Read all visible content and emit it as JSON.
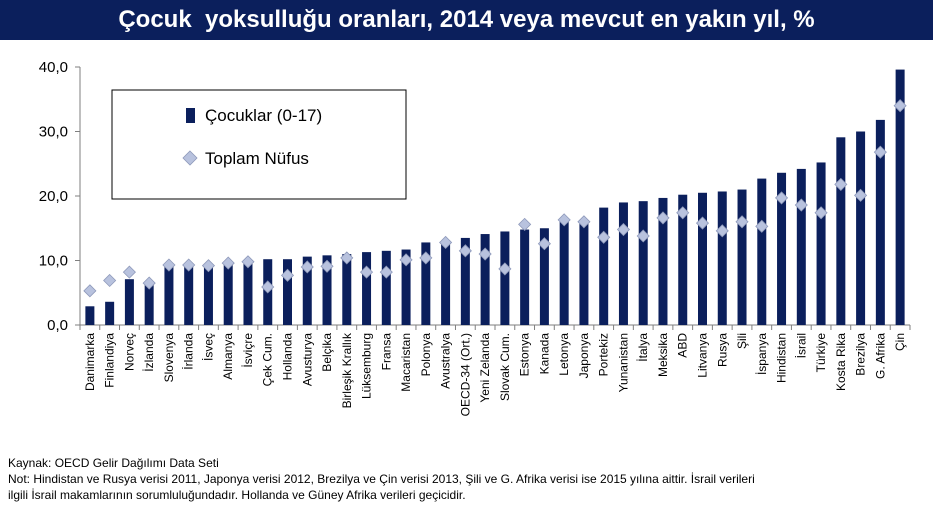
{
  "chart_data": {
    "type": "bar",
    "title": "Çocuk  yoksulluğu oranları, 2014 veya mevcut en yakın yıl, %",
    "ylim": [
      0,
      40
    ],
    "yticks": [
      "0,0",
      "10,0",
      "20,0",
      "30,0",
      "40,0"
    ],
    "legend_position": "top-left",
    "categories": [
      "Danimarka",
      "Finlandiya",
      "Norveç",
      "İzlanda",
      "Slovenya",
      "İrlanda",
      "İsveç",
      "Almanya",
      "İsviçre",
      "Çek Cum.",
      "Hollanda",
      "Avusturya",
      "Belçika",
      "Birleşik Krallık",
      "Lüksemburg",
      "Fransa",
      "Macaristan",
      "Polonya",
      "Avustralya",
      "OECD-34 (Ort.)",
      "Yeni Zelanda",
      "Slovak Cum.",
      "Estonya",
      "Kanada",
      "Letonya",
      "Japonya",
      "Portekiz",
      "Yunanistan",
      "İtalya",
      "Meksika",
      "ABD",
      "Litvanya",
      "Rusya",
      "Şili",
      "İspanya",
      "Hindistan",
      "İsrail",
      "Türkiye",
      "Kosta Rika",
      "Brezilya",
      "G. Afrika",
      "Çin"
    ],
    "series": [
      {
        "name": "Çocuklar (0-17)",
        "type": "bar",
        "color": "#0b1f5c",
        "values": [
          2.9,
          3.6,
          7.1,
          6.3,
          9.0,
          9.1,
          9.0,
          9.5,
          9.5,
          10.2,
          10.2,
          10.6,
          10.8,
          11.0,
          11.3,
          11.5,
          11.7,
          12.8,
          13.1,
          13.5,
          14.1,
          14.5,
          14.8,
          15.0,
          16.1,
          16.3,
          18.2,
          19.0,
          19.2,
          19.7,
          20.2,
          20.5,
          20.7,
          21.0,
          22.7,
          23.6,
          24.2,
          25.2,
          29.1,
          30.0,
          31.8,
          39.6
        ]
      },
      {
        "name": "Toplam Nüfus",
        "type": "marker",
        "color": "#b8c2de",
        "values": [
          5.3,
          6.9,
          8.2,
          6.5,
          9.3,
          9.3,
          9.2,
          9.6,
          9.8,
          5.9,
          7.7,
          9.0,
          9.1,
          10.4,
          8.2,
          8.2,
          10.1,
          10.4,
          12.8,
          11.5,
          11.0,
          8.7,
          15.6,
          12.6,
          16.3,
          16.0,
          13.6,
          14.8,
          13.8,
          16.6,
          17.4,
          15.8,
          14.6,
          16.0,
          15.3,
          19.7,
          18.6,
          17.4,
          21.8,
          20.1,
          26.8,
          34.0
        ]
      }
    ]
  },
  "footer": {
    "line1": "Kaynak: OECD Gelir Dağılımı Data Seti",
    "line2": "Not: Hindistan ve Rusya verisi 2011, Japonya verisi 2012, Brezilya ve Çin verisi 2013, Şili ve G. Afrika verisi ise 2015 yılına aittir. İsrail verileri",
    "line3": "ilgili İsrail makamlarının sorumluluğundadır. Hollanda ve Güney Afrika verileri geçicidir."
  }
}
